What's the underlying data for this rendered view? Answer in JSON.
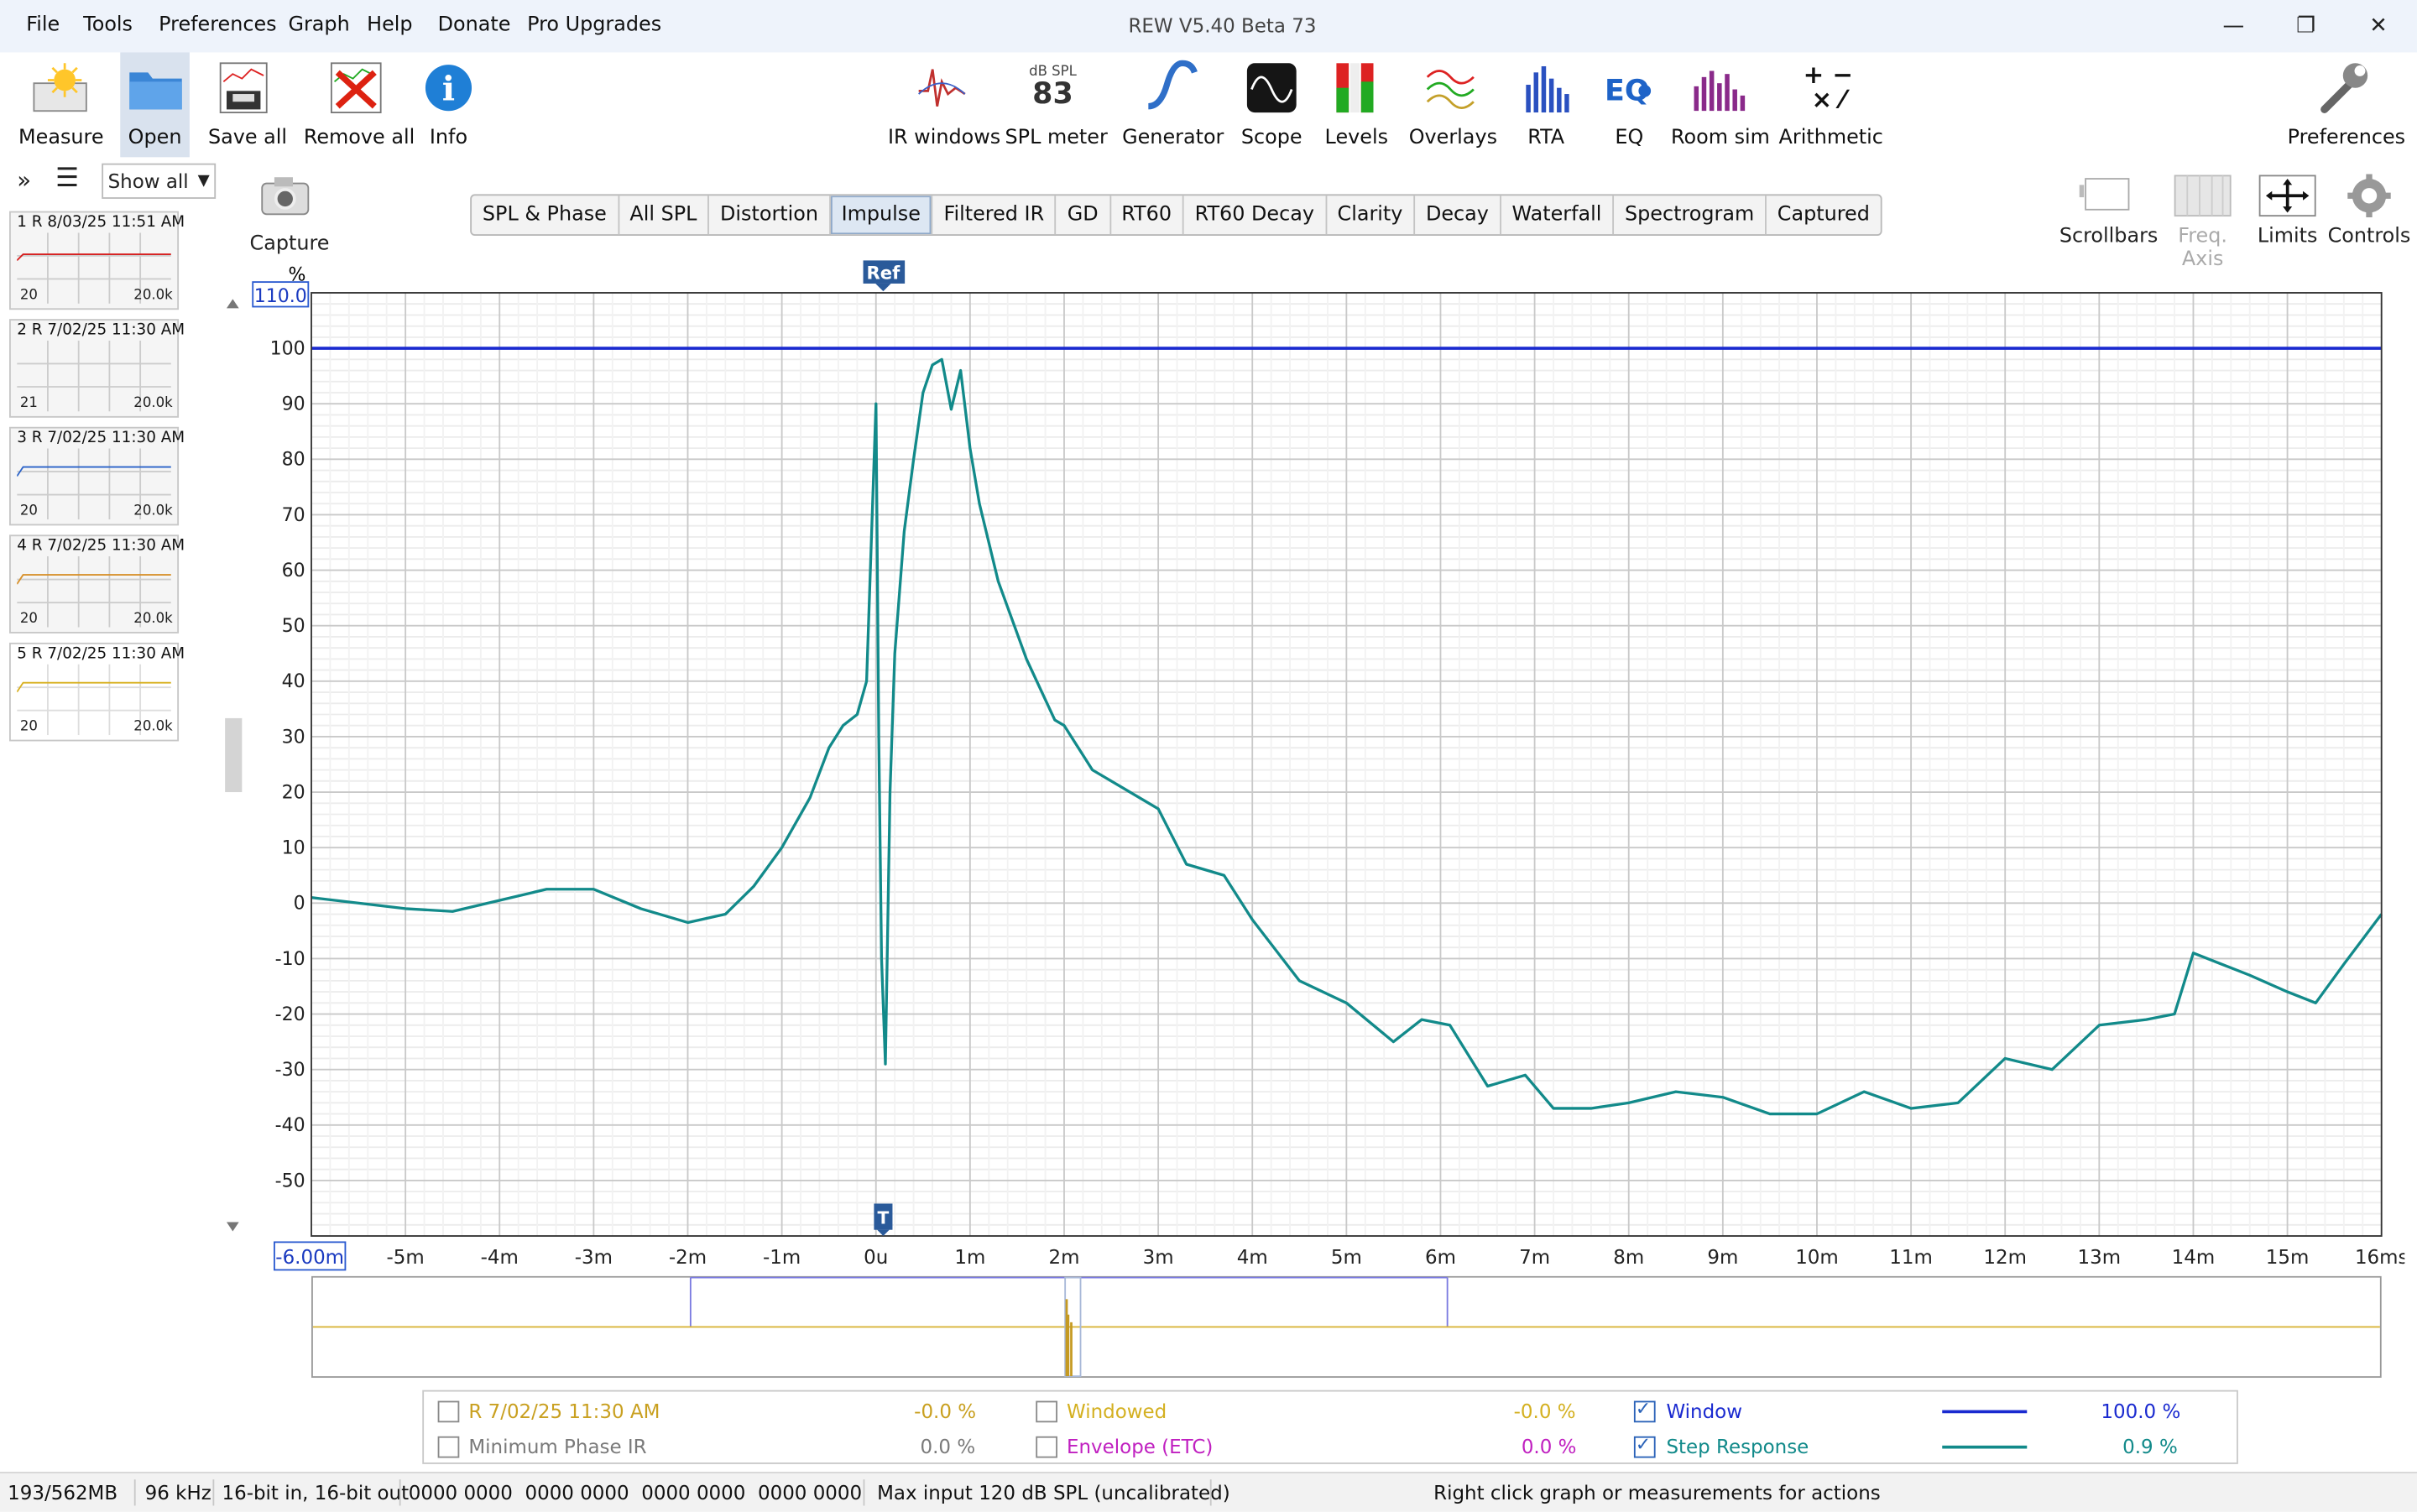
{
  "window": {
    "title": "REW V5.40 Beta 73"
  },
  "menu": [
    "File",
    "Tools",
    "Preferences",
    "Graph",
    "Help",
    "Donate",
    "Pro Upgrades"
  ],
  "toolbar_left": [
    {
      "label": "Measure",
      "icon": "measure-icon"
    },
    {
      "label": "Open",
      "icon": "folder-icon"
    },
    {
      "label": "Save all",
      "icon": "save-icon"
    },
    {
      "label": "Remove all",
      "icon": "remove-icon"
    },
    {
      "label": "Info",
      "icon": "info-icon"
    }
  ],
  "spl_meter": {
    "unit": "dB SPL",
    "value": "83",
    "label": "SPL meter"
  },
  "toolbar_center": [
    {
      "label": "IR windows",
      "icon": "ir-windows-icon"
    },
    {
      "label": "Generator",
      "icon": "generator-icon"
    },
    {
      "label": "Scope",
      "icon": "scope-icon"
    },
    {
      "label": "Levels",
      "icon": "levels-icon"
    },
    {
      "label": "Overlays",
      "icon": "overlays-icon"
    },
    {
      "label": "RTA",
      "icon": "rta-icon"
    },
    {
      "label": "EQ",
      "icon": "eq-icon"
    },
    {
      "label": "Room sim",
      "icon": "room-sim-icon"
    },
    {
      "label": "Arithmetic",
      "icon": "arithmetic-icon"
    }
  ],
  "preferences_label": "Preferences",
  "panel": {
    "show_all": "Show all",
    "capture_label": "Capture"
  },
  "measurements": [
    {
      "title": "1 R 8/03/25 11:51 AM",
      "min": "20",
      "max": "20.0k",
      "color": "#d62020"
    },
    {
      "title": "2 R 7/02/25 11:30 AM",
      "min": "21",
      "max": "20.0k",
      "color": "#888888"
    },
    {
      "title": "3 R 7/02/25 11:30 AM",
      "min": "20",
      "max": "20.0k",
      "color": "#2a62c8"
    },
    {
      "title": "4 R 7/02/25 11:30 AM",
      "min": "20",
      "max": "20.0k",
      "color": "#d7902a"
    },
    {
      "title": "5 R 7/02/25 11:30 AM",
      "min": "20",
      "max": "20.0k",
      "color": "#d8b020"
    }
  ],
  "tabs": [
    "SPL & Phase",
    "All SPL",
    "Distortion",
    "Impulse",
    "Filtered IR",
    "GD",
    "RT60",
    "RT60 Decay",
    "Clarity",
    "Decay",
    "Waterfall",
    "Spectrogram",
    "Captured"
  ],
  "active_tab": "Impulse",
  "right_tools": [
    "Scrollbars",
    "Freq. Axis",
    "Limits",
    "Controls"
  ],
  "graph": {
    "y_unit": "%",
    "y_top_box": "110.0",
    "x_left_box": "-6.00m",
    "ref_marker": "Ref",
    "t_marker": "T",
    "y_ticks": [
      "100",
      "90",
      "80",
      "70",
      "60",
      "50",
      "40",
      "30",
      "20",
      "10",
      "0",
      "-10",
      "-20",
      "-30",
      "-40",
      "-50"
    ],
    "x_ticks": [
      "-5m",
      "-4m",
      "-3m",
      "-2m",
      "-1m",
      "0u",
      "1m",
      "2m",
      "3m",
      "4m",
      "5m",
      "6m",
      "7m",
      "8m",
      "9m",
      "10m",
      "11m",
      "12m",
      "13m",
      "14m",
      "15m",
      "16ms"
    ]
  },
  "chart_data": {
    "type": "line",
    "title": "",
    "xlabel": "",
    "ylabel": "%",
    "xlim": [
      -6.0,
      16.0
    ],
    "ylim": [
      -60,
      110
    ],
    "grid": true,
    "series": [
      {
        "name": "Window",
        "color": "#1a2ad0",
        "x": [
          -6.0,
          16.0
        ],
        "y": [
          100,
          100
        ]
      },
      {
        "name": "Step Response",
        "color": "#128a8a",
        "x": [
          -6.0,
          -5.0,
          -4.5,
          -3.5,
          -3.0,
          -2.5,
          -2.0,
          -1.6,
          -1.3,
          -1.0,
          -0.7,
          -0.5,
          -0.35,
          -0.2,
          -0.1,
          0.0,
          0.03,
          0.06,
          0.1,
          0.15,
          0.2,
          0.3,
          0.4,
          0.5,
          0.6,
          0.7,
          0.8,
          0.9,
          1.0,
          1.1,
          1.3,
          1.6,
          1.9,
          2.0,
          2.3,
          2.6,
          3.0,
          3.3,
          3.7,
          4.0,
          4.5,
          5.0,
          5.5,
          5.8,
          6.1,
          6.5,
          6.9,
          7.2,
          7.6,
          8.0,
          8.5,
          9.0,
          9.5,
          10.0,
          10.5,
          11.0,
          11.5,
          12.0,
          12.5,
          13.0,
          13.5,
          13.8,
          14.0,
          14.3,
          14.6,
          15.0,
          15.3,
          15.6,
          16.0
        ],
        "y": [
          1,
          -1,
          -1.5,
          2.5,
          2.5,
          -1,
          -3.5,
          -2,
          3,
          10,
          19,
          28,
          32,
          34,
          40,
          90,
          30,
          -10,
          -29,
          20,
          45,
          67,
          80,
          92,
          97,
          98,
          89,
          96,
          82,
          72,
          58,
          44,
          33,
          32,
          24,
          21,
          17,
          7,
          5,
          -3,
          -14,
          -18,
          -25,
          -21,
          -22,
          -33,
          -31,
          -37,
          -37,
          -36,
          -34,
          -35,
          -38,
          -38,
          -34,
          -37,
          -36,
          -28,
          -30,
          -22,
          -21,
          -20,
          -9,
          -11,
          -13,
          -16,
          -18,
          -11,
          -2
        ]
      }
    ]
  },
  "overview": {
    "cursor_color": "#c59a22"
  },
  "legend": [
    {
      "label": "R 7/02/25 11:30 AM",
      "value": "-0.0 %",
      "checked": false,
      "color": "#c9a020"
    },
    {
      "label": "Minimum Phase IR",
      "value": "0.0 %",
      "checked": false,
      "color": "#7a7a7a"
    },
    {
      "label": "Windowed",
      "value": "-0.0 %",
      "checked": false,
      "color": "#d4b020"
    },
    {
      "label": "Envelope (ETC)",
      "value": "0.0 %",
      "checked": false,
      "color": "#c020c0"
    },
    {
      "label": "Window",
      "value": "100.0 %",
      "checked": true,
      "color": "#1a2ad0"
    },
    {
      "label": "Step Response",
      "value": "0.9 %",
      "checked": true,
      "color": "#128a8a"
    }
  ],
  "status": {
    "memory": "193/562MB",
    "rate": "96 kHz",
    "bits": "16-bit in, 16-bit out",
    "levels": "0000 0000  0000 0000  0000 0000  0000 0000",
    "max_input": "Max input 120 dB SPL (uncalibrated)",
    "hint": "Right click graph or measurements for actions"
  }
}
